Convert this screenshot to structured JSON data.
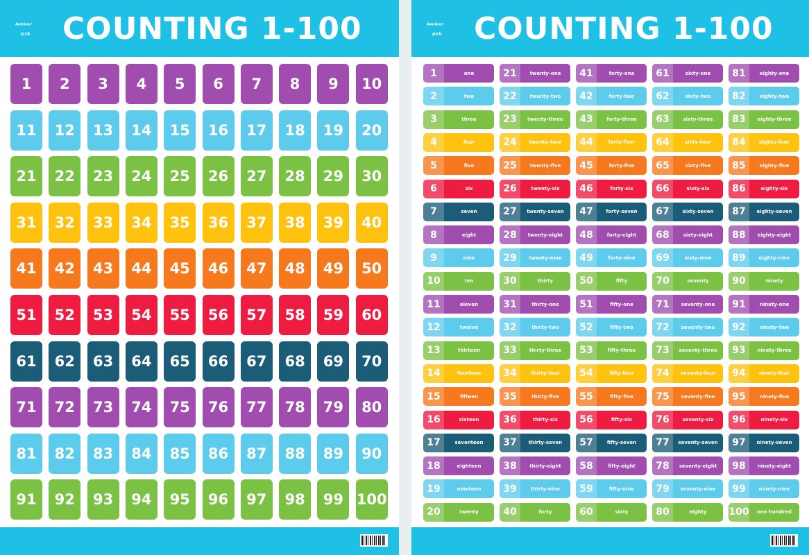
{
  "title": "COUNTING 1-100",
  "row_colors": [
    "#a14db0",
    "#5ccbec",
    "#7bc143",
    "#ffc20e",
    "#f7791e",
    "#ed1c40",
    "#1b5c78",
    "#a14db0",
    "#5ccbec",
    "#7bc143"
  ],
  "header_color": "#1ec0e6",
  "numbers": [
    "1",
    "2",
    "3",
    "4",
    "5",
    "6",
    "7",
    "8",
    "9",
    "10",
    "11",
    "12",
    "13",
    "14",
    "15",
    "16",
    "17",
    "18",
    "19",
    "20",
    "21",
    "22",
    "23",
    "24",
    "25",
    "26",
    "27",
    "28",
    "29",
    "30",
    "31",
    "32",
    "33",
    "34",
    "35",
    "36",
    "37",
    "38",
    "39",
    "40",
    "41",
    "42",
    "43",
    "44",
    "45",
    "46",
    "47",
    "48",
    "49",
    "50",
    "51",
    "52",
    "53",
    "54",
    "55",
    "56",
    "57",
    "58",
    "59",
    "60",
    "61",
    "62",
    "63",
    "64",
    "65",
    "66",
    "67",
    "68",
    "69",
    "70",
    "71",
    "72",
    "73",
    "74",
    "75",
    "76",
    "77",
    "78",
    "79",
    "80",
    "81",
    "82",
    "83",
    "84",
    "85",
    "86",
    "87",
    "88",
    "89",
    "90",
    "91",
    "92",
    "93",
    "94",
    "95",
    "96",
    "97",
    "98",
    "99",
    "100"
  ],
  "words": [
    "one",
    "two",
    "three",
    "four",
    "five",
    "six",
    "seven",
    "eight",
    "nine",
    "ten",
    "eleven",
    "twelve",
    "thirteen",
    "fourteen",
    "fifteen",
    "sixteen",
    "seventeen",
    "eighteen",
    "nineteen",
    "twenty",
    "twenty-one",
    "twenty-two",
    "twenty-three",
    "twenty-four",
    "twenty-five",
    "twenty-six",
    "twenty-seven",
    "twenty-eight",
    "twenty-nine",
    "thirty",
    "thirty-one",
    "thirty-two",
    "thirty-three",
    "thirty-four",
    "thirty-five",
    "thirty-six",
    "thirty-seven",
    "thirty-eight",
    "thirty-nine",
    "forty",
    "forty-one",
    "forty-two",
    "forty-three",
    "forty-four",
    "forty-five",
    "forty-six",
    "forty-seven",
    "forty-eight",
    "forty-nine",
    "fifty",
    "fifty-one",
    "fifty-two",
    "fifty-three",
    "fifty-four",
    "fifty-five",
    "fifty-six",
    "fifty-seven",
    "fifty-eight",
    "fifty-nine",
    "sixty",
    "sixty-one",
    "sixty-two",
    "sixty-three",
    "sixty-four",
    "sixty-five",
    "sixty-six",
    "sixty-seven",
    "sixty-eight",
    "sixty-nine",
    "seventy",
    "seventy-one",
    "seventy-two",
    "seventy-three",
    "seventy-four",
    "seventy-five",
    "seventy-six",
    "seventy-seven",
    "seventy-eight",
    "seventy-nine",
    "eighty",
    "eighty-one",
    "eighty-two",
    "eighty-three",
    "eighty-four",
    "eighty-five",
    "eighty-six",
    "eighty-seven",
    "eighty-eight",
    "eighty-nine",
    "ninety",
    "ninety-one",
    "ninety-two",
    "ninety-three",
    "ninety-four",
    "ninety-five",
    "ninety-six",
    "ninety-seven",
    "ninety-eight",
    "ninety-nine",
    "one hundred"
  ]
}
